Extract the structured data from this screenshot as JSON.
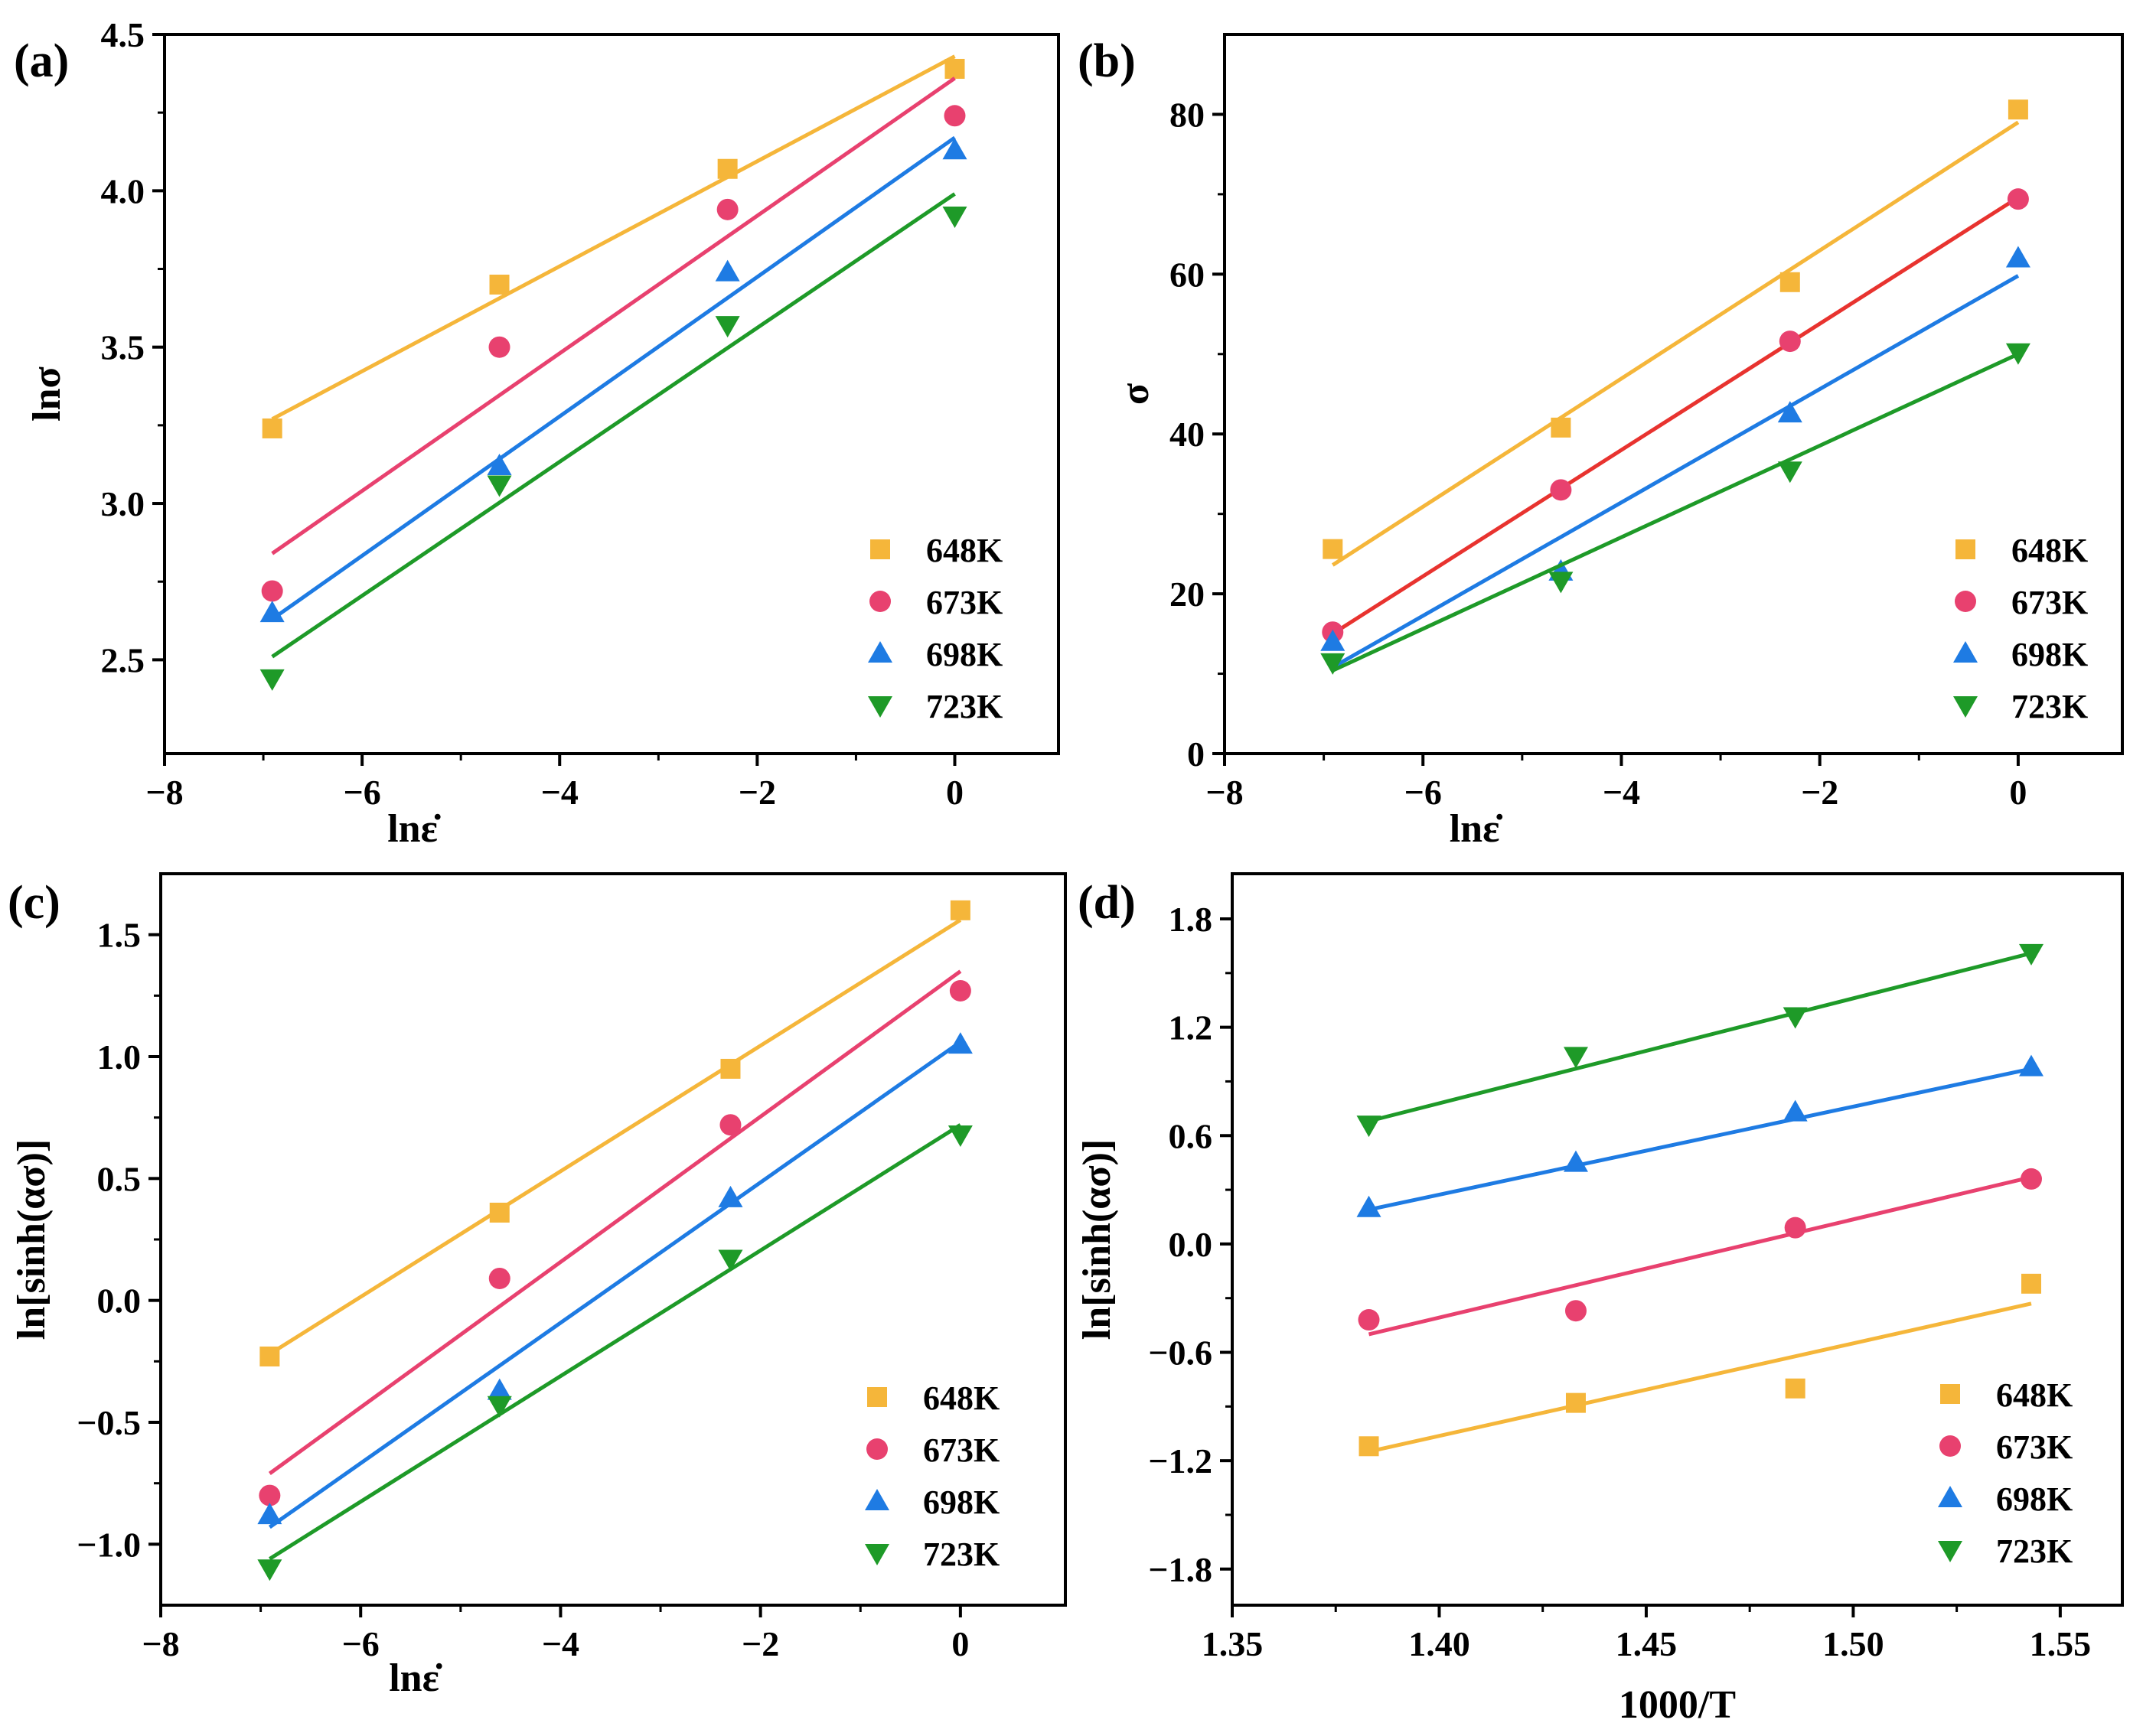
{
  "colors": {
    "648K": "#F5B63A",
    "673K": "#E8416F",
    "698K": "#1E7BE3",
    "723K": "#1E9A28",
    "fit_673K_b": "#E8332F"
  },
  "chart_data": [
    {
      "type": "scatter",
      "panel": "(a)",
      "xlabel": "lnε̇",
      "ylabel": "lnσ",
      "xlim": [
        -8,
        1.05
      ],
      "ylim": [
        2.2,
        4.5
      ],
      "xticks": [
        -8,
        -6,
        -4,
        -2,
        0
      ],
      "xtick_labels": [
        "−8",
        "−6",
        "−4",
        "−2",
        "0"
      ],
      "yticks": [
        2.5,
        3.0,
        3.5,
        4.0,
        4.5
      ],
      "ytick_labels": [
        "2.5",
        "3.0",
        "3.5",
        "4.0",
        "4.5"
      ],
      "legend_position": "bottom-right",
      "series": [
        {
          "name": "648K",
          "marker": "square",
          "x": [
            -6.91,
            -4.61,
            -2.3,
            0
          ],
          "y": [
            3.24,
            3.7,
            4.07,
            4.39
          ],
          "fit": [
            [
              -6.91,
              3.27
            ],
            [
              0,
              4.43
            ]
          ]
        },
        {
          "name": "673K",
          "marker": "circle",
          "x": [
            -6.91,
            -4.61,
            -2.3,
            0
          ],
          "y": [
            2.72,
            3.5,
            3.94,
            4.24
          ],
          "fit": [
            [
              -6.91,
              2.84
            ],
            [
              0,
              4.36
            ]
          ]
        },
        {
          "name": "698K",
          "marker": "triangle-up",
          "x": [
            -6.91,
            -4.61,
            -2.3,
            0
          ],
          "y": [
            2.65,
            3.12,
            3.74,
            4.13
          ],
          "fit": [
            [
              -6.91,
              2.63
            ],
            [
              0,
              4.17
            ]
          ]
        },
        {
          "name": "723K",
          "marker": "triangle-down",
          "x": [
            -6.91,
            -4.61,
            -2.3,
            0
          ],
          "y": [
            2.44,
            3.06,
            3.57,
            3.92
          ],
          "fit": [
            [
              -6.91,
              2.51
            ],
            [
              0,
              3.99
            ]
          ]
        }
      ]
    },
    {
      "type": "scatter",
      "panel": "(b)",
      "xlabel": "lnε̇",
      "ylabel": "σ",
      "xlim": [
        -8,
        1.05
      ],
      "ylim": [
        0,
        90
      ],
      "xticks": [
        -8,
        -6,
        -4,
        -2,
        0
      ],
      "xtick_labels": [
        "−8",
        "−6",
        "−4",
        "−2",
        "0"
      ],
      "yticks": [
        0,
        20,
        40,
        60,
        80
      ],
      "ytick_labels": [
        "0",
        "20",
        "40",
        "60",
        "80"
      ],
      "legend_position": "bottom-right",
      "series": [
        {
          "name": "648K",
          "marker": "square",
          "x": [
            -6.91,
            -4.61,
            -2.3,
            0
          ],
          "y": [
            25.6,
            40.8,
            59.0,
            80.6
          ],
          "fit": [
            [
              -6.91,
              23.6
            ],
            [
              0,
              79.0
            ]
          ]
        },
        {
          "name": "673K",
          "marker": "circle",
          "x": [
            -6.91,
            -4.61,
            -2.3,
            0
          ],
          "y": [
            15.2,
            33.0,
            51.6,
            69.4
          ],
          "fit": [
            [
              -6.91,
              15.0
            ],
            [
              0,
              69.6
            ]
          ]
        },
        {
          "name": "698K",
          "marker": "triangle-up",
          "x": [
            -6.91,
            -4.61,
            -2.3,
            0
          ],
          "y": [
            14.0,
            22.8,
            42.6,
            62.0
          ],
          "fit": [
            [
              -6.91,
              10.8
            ],
            [
              0,
              59.8
            ]
          ]
        },
        {
          "name": "723K",
          "marker": "triangle-down",
          "x": [
            -6.91,
            -4.61,
            -2.3,
            0
          ],
          "y": [
            11.4,
            21.6,
            35.4,
            50.2
          ],
          "fit": [
            [
              -6.91,
              10.4
            ],
            [
              0,
              50.0
            ]
          ]
        }
      ]
    },
    {
      "type": "scatter",
      "panel": "(c)",
      "xlabel": "lnε̇",
      "ylabel": "ln[sinh(ασ)]",
      "xlim": [
        -8,
        1.05
      ],
      "ylim": [
        -1.25,
        1.75
      ],
      "xticks": [
        -8,
        -6,
        -4,
        -2,
        0
      ],
      "xtick_labels": [
        "−8",
        "−6",
        "−4",
        "−2",
        "0"
      ],
      "yticks": [
        -1.0,
        -0.5,
        0.0,
        0.5,
        1.0,
        1.5
      ],
      "ytick_labels": [
        "−1.0",
        "−0.5",
        "0.0",
        "0.5",
        "1.0",
        "1.5"
      ],
      "legend_position": "bottom-right",
      "series": [
        {
          "name": "648K",
          "marker": "square",
          "x": [
            -6.91,
            -4.61,
            -2.3,
            0
          ],
          "y": [
            -0.23,
            0.36,
            0.95,
            1.6
          ],
          "fit": [
            [
              -6.91,
              -0.22
            ],
            [
              0,
              1.56
            ]
          ]
        },
        {
          "name": "673K",
          "marker": "circle",
          "x": [
            -6.91,
            -4.61,
            -2.3,
            0
          ],
          "y": [
            -0.8,
            0.09,
            0.72,
            1.27
          ],
          "fit": [
            [
              -6.91,
              -0.71
            ],
            [
              0,
              1.35
            ]
          ]
        },
        {
          "name": "698K",
          "marker": "triangle-up",
          "x": [
            -6.91,
            -4.61,
            -2.3,
            0
          ],
          "y": [
            -0.88,
            -0.37,
            0.42,
            1.05
          ],
          "fit": [
            [
              -6.91,
              -0.93
            ],
            [
              0,
              1.06
            ]
          ]
        },
        {
          "name": "723K",
          "marker": "triangle-down",
          "x": [
            -6.91,
            -4.61,
            -2.3,
            0
          ],
          "y": [
            -1.1,
            -0.43,
            0.17,
            0.68
          ],
          "fit": [
            [
              -6.91,
              -1.06
            ],
            [
              0,
              0.72
            ]
          ]
        }
      ]
    },
    {
      "type": "scatter",
      "panel": "(d)",
      "xlabel": "1000/T",
      "ylabel": "ln[sinh(ασ)]",
      "xlim": [
        1.35,
        1.565
      ],
      "ylim": [
        -2.0,
        2.05
      ],
      "xticks": [
        1.35,
        1.4,
        1.45,
        1.5,
        1.55
      ],
      "xtick_labels": [
        "1.35",
        "1.40",
        "1.45",
        "1.50",
        "1.55"
      ],
      "yticks": [
        -1.8,
        -1.2,
        -0.6,
        0.0,
        0.6,
        1.2,
        1.8
      ],
      "ytick_labels": [
        "−1.8",
        "−1.2",
        "−0.6",
        "0.0",
        "0.6",
        "1.2",
        "1.8"
      ],
      "legend_position": "bottom-right",
      "series": [
        {
          "name": "648K",
          "marker": "square",
          "x": [
            1.383,
            1.433,
            1.486,
            1.543
          ],
          "y": [
            -1.12,
            -0.88,
            -0.8,
            -0.22
          ],
          "fit": [
            [
              1.383,
              -1.15
            ],
            [
              1.543,
              -0.33
            ]
          ]
        },
        {
          "name": "673K",
          "marker": "circle",
          "x": [
            1.383,
            1.433,
            1.486,
            1.543
          ],
          "y": [
            -0.42,
            -0.37,
            0.09,
            0.36
          ],
          "fit": [
            [
              1.383,
              -0.5
            ],
            [
              1.543,
              0.37
            ]
          ]
        },
        {
          "name": "698K",
          "marker": "triangle-up",
          "x": [
            1.383,
            1.433,
            1.486,
            1.543
          ],
          "y": [
            0.2,
            0.45,
            0.73,
            0.98
          ],
          "fit": [
            [
              1.383,
              0.19
            ],
            [
              1.543,
              0.97
            ]
          ]
        },
        {
          "name": "723K",
          "marker": "triangle-down",
          "x": [
            1.383,
            1.433,
            1.486,
            1.543
          ],
          "y": [
            0.66,
            1.04,
            1.26,
            1.61
          ],
          "fit": [
            [
              1.383,
              0.68
            ],
            [
              1.543,
              1.61
            ]
          ]
        }
      ]
    }
  ]
}
